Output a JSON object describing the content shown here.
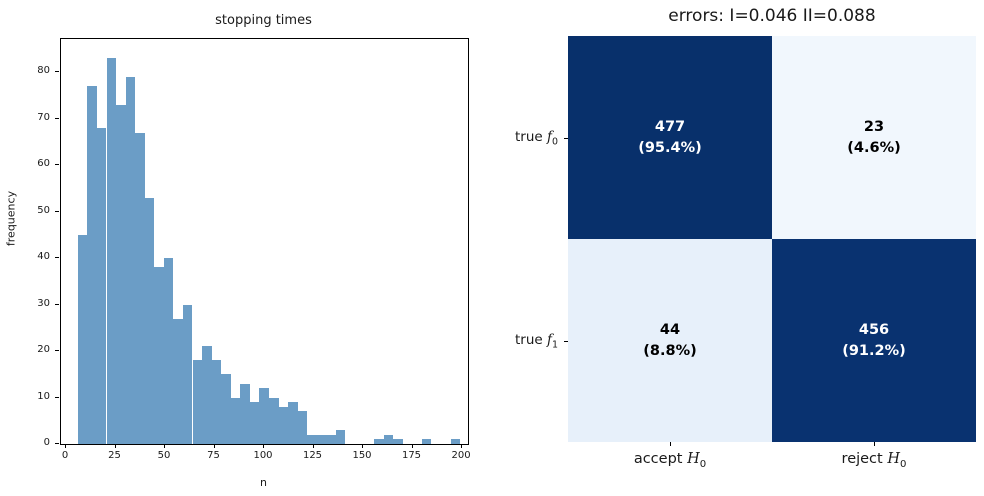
{
  "figure": {
    "background": "#ffffff"
  },
  "histogram": {
    "title": "stopping times",
    "xlabel": "n",
    "ylabel": "frequency",
    "bar_color": "#6b9dc6",
    "x_ticks": [
      0,
      25,
      50,
      75,
      100,
      125,
      150,
      175,
      200
    ],
    "y_ticks": [
      0,
      10,
      20,
      30,
      40,
      50,
      60,
      70,
      80
    ],
    "xlim": [
      -2.5,
      203
    ],
    "ylim": [
      0,
      87.15
    ],
    "bin_start": 6,
    "bin_width": 4.825,
    "counts": [
      45,
      77,
      68,
      83,
      73,
      79,
      67,
      53,
      38,
      40,
      27,
      30,
      18,
      21,
      18,
      15,
      10,
      13,
      9,
      12,
      10,
      8,
      9,
      7,
      2,
      2,
      2,
      3,
      0,
      0,
      0,
      1,
      2,
      1,
      0,
      0,
      1,
      0,
      0,
      1
    ]
  },
  "confusion_matrix": {
    "title": "errors: I=0.046 II=0.088",
    "row_labels": [
      {
        "prefix": "true ",
        "var": "f",
        "sub": "0"
      },
      {
        "prefix": "true ",
        "var": "f",
        "sub": "1"
      }
    ],
    "col_labels": [
      {
        "prefix": "accept ",
        "var": "H",
        "sub": "0"
      },
      {
        "prefix": "reject ",
        "var": "H",
        "sub": "0"
      }
    ],
    "cells": [
      [
        {
          "count": "477",
          "pct": "(95.4%)",
          "bg": "#08306b",
          "fg": "#ffffff"
        },
        {
          "count": "23",
          "pct": "(4.6%)",
          "bg": "#f1f7fd",
          "fg": "#000000"
        }
      ],
      [
        {
          "count": "44",
          "pct": "(8.8%)",
          "bg": "#e7f0fa",
          "fg": "#000000"
        },
        {
          "count": "456",
          "pct": "(91.2%)",
          "bg": "#093270",
          "fg": "#ffffff"
        }
      ]
    ]
  },
  "chart_data": [
    {
      "type": "bar",
      "subtype": "histogram",
      "title": "stopping times",
      "xlabel": "n",
      "ylabel": "frequency",
      "bin_start": 6,
      "bin_width": 4.825,
      "bin_counts": [
        45,
        77,
        68,
        83,
        73,
        79,
        67,
        53,
        38,
        40,
        27,
        30,
        18,
        21,
        18,
        15,
        10,
        13,
        9,
        12,
        10,
        8,
        9,
        7,
        2,
        2,
        2,
        3,
        0,
        0,
        0,
        1,
        2,
        1,
        0,
        0,
        1,
        0,
        0,
        1
      ],
      "xlim": [
        -2.5,
        203
      ],
      "ylim": [
        0,
        87.15
      ],
      "x_ticks": [
        0,
        25,
        50,
        75,
        100,
        125,
        150,
        175,
        200
      ],
      "y_ticks": [
        0,
        10,
        20,
        30,
        40,
        50,
        60,
        70,
        80
      ],
      "grid": false,
      "bar_color": "#6b9dc6"
    },
    {
      "type": "heatmap",
      "subtype": "confusion-matrix",
      "title": "errors: I=0.046 II=0.088",
      "row_labels": [
        "true f_0",
        "true f_1"
      ],
      "col_labels": [
        "accept H_0",
        "reject H_0"
      ],
      "values": [
        [
          477,
          23
        ],
        [
          44,
          456
        ]
      ],
      "percent_labels": [
        [
          "95.4%",
          "4.6%"
        ],
        [
          "8.8%",
          "91.2%"
        ]
      ],
      "type_I_error": 0.046,
      "type_II_error": 0.088,
      "colormap": "Blues",
      "dark_color": "#08306b",
      "light_color": "#f1f7fd"
    }
  ]
}
